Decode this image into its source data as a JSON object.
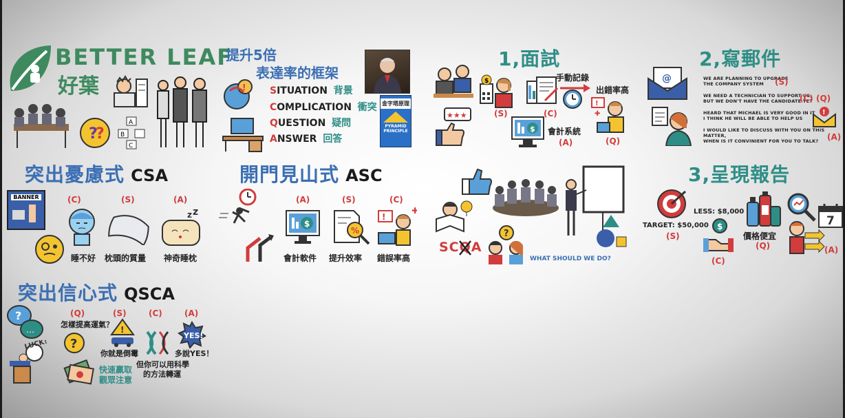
{
  "logo": {
    "brand": "BETTER LEAF",
    "brand_cn": "好葉"
  },
  "colors": {
    "blue": "#3b6fb3",
    "teal": "#2e8e86",
    "red": "#d23c3c",
    "black": "#1a1a1a"
  },
  "intro": {
    "title_line1": "提升5倍",
    "title_line2": "表達率的框架",
    "scqa": [
      {
        "letter": "S",
        "rest": "ITUATION",
        "cn": "背景"
      },
      {
        "letter": "C",
        "rest": "OMPLICATION",
        "cn": "衝突"
      },
      {
        "letter": "Q",
        "rest": "UESTION",
        "cn": "疑問"
      },
      {
        "letter": "A",
        "rest": "NSWER",
        "cn": "回答"
      }
    ],
    "book_title": "金字塔原理",
    "book_subtitle": "PYRAMID PRINCIPLE"
  },
  "csa": {
    "title_cn": "突出憂慮式",
    "title_code": "CSA",
    "tags": [
      "(C)",
      "(S)",
      "(A)"
    ],
    "captions": [
      "睡不好",
      "枕頭的質量",
      "神奇睡枕"
    ],
    "banner": "BANNER"
  },
  "asc": {
    "title_cn": "開門見山式",
    "title_code": "ASC",
    "tags": [
      "(A)",
      "(S)",
      "(C)"
    ],
    "captions": [
      "會計軟件",
      "提升效率",
      "錯誤率高"
    ]
  },
  "qsca": {
    "title_cn": "突出信心式",
    "title_code": "QSCA",
    "tags": [
      "(Q)",
      "(S)",
      "(C)",
      "(A)"
    ],
    "q_text": "怎樣提高運氣？",
    "s_text": "你就是倒霉",
    "c_text1": "但你可以用科學",
    "c_text2": "的方法轉運",
    "a_text": "多說YES！",
    "hook1": "快速贏取",
    "hook2": "觀眾注意",
    "yes_badge": "YES!",
    "luck": "LUCK!"
  },
  "interview": {
    "title": "1,面試",
    "tags": [
      "(S)",
      "(C)",
      "(A)",
      "(Q)"
    ],
    "manual": "手動記錄",
    "error": "出錯率高",
    "system": "會計系統",
    "stars": "★★★"
  },
  "email": {
    "title": "2,寫郵件",
    "lines": [
      "WE ARE PLANNING TO UPGRADE",
      "THE COMPANY SYSTEM",
      "WE NEED A TECHNICIAN TO SUPPORT US,",
      "BUT WE DON'T HAVE THE CANDIDATE YET",
      "HEARD THAT MICHAEL IS VERY GOOD IN IT",
      "I THINK HE WILL BE ABLE TO HELP US",
      "I WOULD LIKE TO DISCUSS WITH YOU ON THIS MATTER,",
      "WHEN IS IT CONVINIENT FOR YOU TO TALK?"
    ],
    "tags": [
      "(S)",
      "(C)",
      "(Q)",
      "(A)"
    ]
  },
  "meeting": {
    "scqa_text": "SCQA",
    "question": "WHAT SHOULD WE DO?"
  },
  "report": {
    "title": "3,呈現報告",
    "less": "LESS: $8,000",
    "target": "TARGET: $50,000",
    "cheap": "價格便宜",
    "calendar": "7",
    "tags": [
      "(S)",
      "(C)",
      "(Q)",
      "(A)"
    ]
  }
}
